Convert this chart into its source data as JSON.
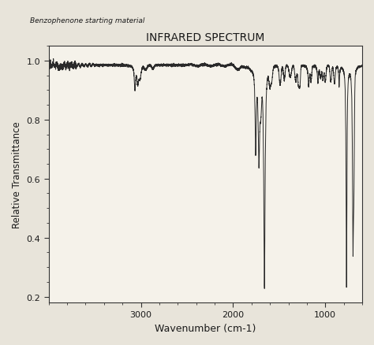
{
  "title": "INFRARED SPECTRUM",
  "xlabel": "Wavenumber (cm-1)",
  "ylabel": "Relative Transmittance",
  "subtitle": "Benzophenone starting material",
  "background_color": "#e8e4da",
  "plot_bg_color": "#f0ece0",
  "xlim": [
    4000,
    600
  ],
  "ylim": [
    0.18,
    1.05
  ],
  "yticks": [
    0.2,
    0.4,
    0.6,
    0.8,
    1.0
  ],
  "xticks": [
    3000,
    2000,
    1000
  ],
  "line_color": "#2a2a2a",
  "line_width": 0.7
}
